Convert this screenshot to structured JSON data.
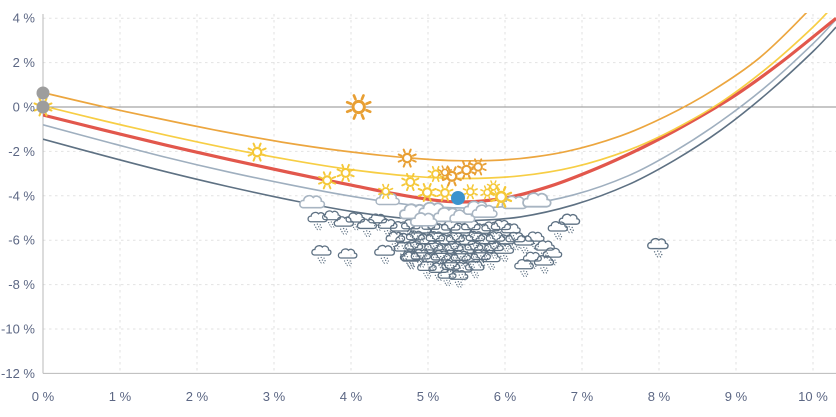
{
  "chart_data": {
    "type": "scatter",
    "title": "",
    "xlabel": "",
    "ylabel": "",
    "grid": "dashed, light gray, every 1% vertical and 2% horizontal",
    "legend": "none",
    "x_axis": {
      "tick_labels": [
        "0 %",
        "1 %",
        "2 %",
        "3 %",
        "4 %",
        "5 %",
        "6 %",
        "7 %",
        "8 %",
        "9 %",
        "10 %"
      ],
      "tick_values": [
        0,
        1,
        2,
        3,
        4,
        5,
        6,
        7,
        8,
        9,
        10
      ],
      "range": [
        0,
        10.3
      ]
    },
    "y_axis": {
      "tick_labels": [
        "4 %",
        "2 %",
        "0 %",
        "-2 %",
        "-4 %",
        "-6 %",
        "-8 %",
        "-10 %",
        "-12 %"
      ],
      "tick_values": [
        4,
        2,
        0,
        -2,
        -4,
        -6,
        -8,
        -10,
        -12
      ],
      "range": [
        -12,
        4.2
      ],
      "zero_line": 0
    },
    "series": [
      {
        "name": "orange-curve",
        "color": "#ECA63F",
        "width": 1.7,
        "points": [
          [
            0,
            0.65
          ],
          [
            0.7,
            0.08
          ],
          [
            1.5,
            -0.52
          ],
          [
            2.3,
            -1.08
          ],
          [
            3.1,
            -1.58
          ],
          [
            3.9,
            -1.98
          ],
          [
            4.7,
            -2.28
          ],
          [
            5.4,
            -2.42
          ],
          [
            6.1,
            -2.35
          ],
          [
            6.8,
            -2.0
          ],
          [
            7.5,
            -1.3
          ],
          [
            8.1,
            -0.4
          ],
          [
            8.7,
            0.75
          ],
          [
            9.3,
            2.2
          ],
          [
            9.9,
            4.2
          ],
          [
            10.3,
            5.8
          ]
        ]
      },
      {
        "name": "yellow-curve",
        "color": "#F7CE45",
        "width": 1.7,
        "points": [
          [
            0,
            0.05
          ],
          [
            0.8,
            -0.63
          ],
          [
            1.6,
            -1.27
          ],
          [
            2.4,
            -1.86
          ],
          [
            3.2,
            -2.38
          ],
          [
            4.0,
            -2.82
          ],
          [
            4.8,
            -3.12
          ],
          [
            5.5,
            -3.22
          ],
          [
            6.2,
            -3.1
          ],
          [
            6.9,
            -2.7
          ],
          [
            7.6,
            -1.95
          ],
          [
            8.2,
            -1.0
          ],
          [
            8.8,
            0.2
          ],
          [
            9.4,
            1.75
          ],
          [
            10.0,
            3.6
          ],
          [
            10.3,
            4.7
          ]
        ]
      },
      {
        "name": "red-curve",
        "color": "#E2574C",
        "width": 3.2,
        "points": [
          [
            0,
            -0.36
          ],
          [
            0.8,
            -1.05
          ],
          [
            1.6,
            -1.72
          ],
          [
            2.4,
            -2.35
          ],
          [
            3.2,
            -2.95
          ],
          [
            4.0,
            -3.52
          ],
          [
            4.8,
            -4.05
          ],
          [
            5.4,
            -4.28
          ],
          [
            6.0,
            -4.1
          ],
          [
            6.6,
            -3.55
          ],
          [
            7.2,
            -2.75
          ],
          [
            7.8,
            -1.8
          ],
          [
            8.4,
            -0.7
          ],
          [
            9.0,
            0.55
          ],
          [
            9.6,
            2.05
          ],
          [
            10.3,
            4.0
          ]
        ]
      },
      {
        "name": "light-slate-curve",
        "color": "#9FAFBF",
        "width": 1.6,
        "points": [
          [
            0,
            -0.8
          ],
          [
            0.8,
            -1.55
          ],
          [
            1.6,
            -2.27
          ],
          [
            2.4,
            -2.92
          ],
          [
            3.2,
            -3.5
          ],
          [
            4.0,
            -4.02
          ],
          [
            4.8,
            -4.42
          ],
          [
            5.5,
            -4.55
          ],
          [
            6.2,
            -4.42
          ],
          [
            6.9,
            -3.95
          ],
          [
            7.6,
            -3.1
          ],
          [
            8.2,
            -2.0
          ],
          [
            8.8,
            -0.65
          ],
          [
            9.4,
            0.95
          ],
          [
            10.0,
            2.85
          ],
          [
            10.3,
            3.95
          ]
        ]
      },
      {
        "name": "dark-slate-curve",
        "color": "#5E7183",
        "width": 1.6,
        "points": [
          [
            0,
            -1.45
          ],
          [
            0.8,
            -2.2
          ],
          [
            1.6,
            -2.92
          ],
          [
            2.4,
            -3.58
          ],
          [
            3.2,
            -4.18
          ],
          [
            4.0,
            -4.7
          ],
          [
            4.8,
            -5.05
          ],
          [
            5.5,
            -5.12
          ],
          [
            6.2,
            -4.95
          ],
          [
            6.9,
            -4.4
          ],
          [
            7.6,
            -3.5
          ],
          [
            8.2,
            -2.4
          ],
          [
            8.8,
            -1.05
          ],
          [
            9.4,
            0.6
          ],
          [
            10.0,
            2.5
          ],
          [
            10.3,
            3.6
          ]
        ]
      }
    ],
    "markers": {
      "gray_dots": [
        [
          0,
          0.63
        ],
        [
          0,
          0.0
        ]
      ],
      "sun_behind_origin_dot": [
        0,
        0.0
      ],
      "blue_dot": [
        5.39,
        -4.1
      ],
      "suns_yellow": [
        [
          2.78,
          -2.03,
          1.0
        ],
        [
          3.69,
          -3.3,
          0.95
        ],
        [
          3.93,
          -2.97,
          0.95
        ],
        [
          4.45,
          -3.8,
          0.8
        ],
        [
          4.77,
          -3.38,
          0.95
        ],
        [
          5.1,
          -3.02,
          0.85
        ],
        [
          4.99,
          -3.85,
          1.0
        ],
        [
          5.22,
          -3.87,
          0.9
        ],
        [
          5.55,
          -3.82,
          0.8
        ],
        [
          5.77,
          -3.85,
          0.75
        ],
        [
          5.95,
          -4.05,
          1.15
        ],
        [
          5.85,
          -3.6,
          0.7
        ]
      ],
      "suns_orange": [
        [
          4.1,
          0.0,
          1.35
        ],
        [
          4.73,
          -2.3,
          1.0
        ],
        [
          5.31,
          -3.12,
          1.05
        ],
        [
          5.22,
          -2.95,
          0.75
        ],
        [
          5.5,
          -2.84,
          1.0
        ],
        [
          5.65,
          -2.7,
          0.9
        ]
      ],
      "clouds_white": [
        [
          3.5,
          -4.32,
          0.8
        ],
        [
          4.48,
          -4.19,
          0.75
        ],
        [
          4.83,
          -4.77,
          0.95
        ],
        [
          5.07,
          -4.68,
          0.9
        ],
        [
          5.26,
          -4.91,
          0.9
        ],
        [
          4.95,
          -5.12,
          0.85
        ],
        [
          5.45,
          -4.97,
          0.8
        ],
        [
          5.64,
          -4.6,
          0.85
        ],
        [
          5.74,
          -4.75,
          0.8
        ],
        [
          6.13,
          -4.35,
          0.8
        ],
        [
          6.42,
          -4.25,
          0.9
        ]
      ],
      "clouds_rain": [
        [
          3.57,
          -5.0,
          0.62
        ],
        [
          3.75,
          -4.92,
          0.58
        ],
        [
          3.91,
          -5.2,
          0.62
        ],
        [
          4.06,
          -5.02,
          0.6
        ],
        [
          4.21,
          -5.3,
          0.62
        ],
        [
          4.35,
          -5.06,
          0.58
        ],
        [
          4.48,
          -5.3,
          0.6
        ],
        [
          4.64,
          -5.42,
          0.62
        ],
        [
          4.78,
          -5.32,
          0.6
        ],
        [
          4.91,
          -5.5,
          0.64
        ],
        [
          5.04,
          -5.35,
          0.58
        ],
        [
          5.17,
          -5.52,
          0.62
        ],
        [
          5.3,
          -5.38,
          0.6
        ],
        [
          5.43,
          -5.5,
          0.64
        ],
        [
          5.56,
          -5.36,
          0.6
        ],
        [
          5.69,
          -5.52,
          0.62
        ],
        [
          5.82,
          -5.42,
          0.58
        ],
        [
          5.95,
          -5.35,
          0.62
        ],
        [
          6.08,
          -5.5,
          0.6
        ],
        [
          4.58,
          -5.88,
          0.6
        ],
        [
          4.71,
          -5.95,
          0.62
        ],
        [
          4.84,
          -5.82,
          0.58
        ],
        [
          4.97,
          -5.98,
          0.64
        ],
        [
          5.1,
          -5.86,
          0.6
        ],
        [
          5.23,
          -6.0,
          0.62
        ],
        [
          5.36,
          -5.9,
          0.58
        ],
        [
          5.49,
          -6.02,
          0.62
        ],
        [
          5.62,
          -5.85,
          0.6
        ],
        [
          5.75,
          -5.98,
          0.64
        ],
        [
          5.88,
          -5.88,
          0.6
        ],
        [
          6.01,
          -6.0,
          0.58
        ],
        [
          6.14,
          -5.9,
          0.62
        ],
        [
          4.69,
          -6.32,
          0.62
        ],
        [
          4.82,
          -6.25,
          0.58
        ],
        [
          4.95,
          -6.4,
          0.62
        ],
        [
          5.08,
          -6.28,
          0.6
        ],
        [
          5.21,
          -6.42,
          0.64
        ],
        [
          5.34,
          -6.3,
          0.6
        ],
        [
          5.47,
          -6.44,
          0.62
        ],
        [
          5.6,
          -6.28,
          0.58
        ],
        [
          5.73,
          -6.4,
          0.62
        ],
        [
          5.86,
          -6.3,
          0.6
        ],
        [
          5.99,
          -6.42,
          0.62
        ],
        [
          4.78,
          -6.78,
          0.6
        ],
        [
          4.91,
          -6.68,
          0.62
        ],
        [
          5.04,
          -6.82,
          0.58
        ],
        [
          5.17,
          -6.72,
          0.62
        ],
        [
          5.3,
          -6.85,
          0.6
        ],
        [
          5.43,
          -6.74,
          0.62
        ],
        [
          5.56,
          -6.82,
          0.58
        ],
        [
          5.69,
          -6.7,
          0.62
        ],
        [
          5.82,
          -6.8,
          0.6
        ],
        [
          4.99,
          -7.2,
          0.6
        ],
        [
          5.14,
          -7.28,
          0.62
        ],
        [
          5.3,
          -7.15,
          0.58
        ],
        [
          5.45,
          -7.26,
          0.62
        ],
        [
          5.61,
          -7.18,
          0.6
        ],
        [
          5.25,
          -7.55,
          0.58
        ],
        [
          5.4,
          -7.6,
          0.6
        ],
        [
          6.25,
          -6.05,
          0.62
        ],
        [
          6.39,
          -5.88,
          0.6
        ],
        [
          6.52,
          -6.28,
          0.62
        ],
        [
          6.62,
          -6.6,
          0.6
        ],
        [
          6.51,
          -6.95,
          0.62
        ],
        [
          6.36,
          -6.78,
          0.58
        ],
        [
          6.25,
          -7.12,
          0.6
        ],
        [
          6.69,
          -5.42,
          0.62
        ],
        [
          3.62,
          -6.5,
          0.62
        ],
        [
          3.96,
          -6.64,
          0.6
        ],
        [
          4.44,
          -6.5,
          0.64
        ],
        [
          4.77,
          -6.73,
          0.62
        ],
        [
          6.84,
          -5.1,
          0.66
        ],
        [
          7.99,
          -6.2,
          0.66
        ]
      ]
    },
    "colors": {
      "grid": "#E2E2E2",
      "zero_line": "#8F8F8F",
      "axis": "#B9B9B9",
      "tick_label": "#5C6784",
      "gray_dot": "#9D9D9D",
      "blue_dot": "#3B93CE",
      "sun_yellow": "#F5C838",
      "sun_orange": "#E89F33",
      "white_cloud_stroke": "#A8B5C2",
      "rain_cloud": "#5E7183",
      "background": "#FFFFFF"
    }
  }
}
